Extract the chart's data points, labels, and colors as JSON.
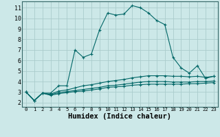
{
  "bg_color": "#cce8e8",
  "grid_color": "#aacccc",
  "line_color": "#006666",
  "marker_style": "+",
  "xlabel": "Humidex (Indice chaleur)",
  "xlabel_fontsize": 7.5,
  "ytick_fontsize": 6.0,
  "xtick_fontsize": 5.2,
  "yticks": [
    2,
    3,
    4,
    5,
    6,
    7,
    8,
    9,
    10,
    11
  ],
  "xticks": [
    0,
    1,
    2,
    3,
    4,
    5,
    6,
    7,
    8,
    9,
    10,
    11,
    12,
    13,
    14,
    15,
    16,
    17,
    18,
    19,
    20,
    21,
    22,
    23
  ],
  "xlim": [
    -0.5,
    23.5
  ],
  "ylim": [
    1.6,
    11.6
  ],
  "lines": [
    {
      "x": [
        0,
        1,
        2,
        3,
        4,
        5,
        6,
        7,
        8,
        9,
        10,
        11,
        12,
        13,
        14,
        15,
        16,
        17,
        18,
        19,
        20,
        21,
        22,
        23
      ],
      "y": [
        3.0,
        2.2,
        2.9,
        2.9,
        3.6,
        3.6,
        7.0,
        6.3,
        6.6,
        8.9,
        10.5,
        10.3,
        10.4,
        11.2,
        11.0,
        10.5,
        9.8,
        9.4,
        6.3,
        5.3,
        4.8,
        5.5,
        4.3,
        4.5
      ]
    },
    {
      "x": [
        0,
        1,
        2,
        3,
        4,
        5,
        6,
        7,
        8,
        9,
        10,
        11,
        12,
        13,
        14,
        15,
        16,
        17,
        18,
        19,
        20,
        21,
        22,
        23
      ],
      "y": [
        3.0,
        2.2,
        2.9,
        2.8,
        3.1,
        3.2,
        3.4,
        3.6,
        3.7,
        3.85,
        4.0,
        4.1,
        4.2,
        4.35,
        4.45,
        4.55,
        4.55,
        4.55,
        4.5,
        4.5,
        4.45,
        4.5,
        4.4,
        4.5
      ]
    },
    {
      "x": [
        0,
        1,
        2,
        3,
        4,
        5,
        6,
        7,
        8,
        9,
        10,
        11,
        12,
        13,
        14,
        15,
        16,
        17,
        18,
        19,
        20,
        21,
        22,
        23
      ],
      "y": [
        3.0,
        2.2,
        2.9,
        2.75,
        2.95,
        3.05,
        3.15,
        3.25,
        3.35,
        3.45,
        3.6,
        3.65,
        3.75,
        3.85,
        3.95,
        4.0,
        4.0,
        4.0,
        3.95,
        3.95,
        3.95,
        4.0,
        4.0,
        4.05
      ]
    },
    {
      "x": [
        0,
        1,
        2,
        3,
        4,
        5,
        6,
        7,
        8,
        9,
        10,
        11,
        12,
        13,
        14,
        15,
        16,
        17,
        18,
        19,
        20,
        21,
        22,
        23
      ],
      "y": [
        3.0,
        2.2,
        2.9,
        2.7,
        2.85,
        2.95,
        3.05,
        3.1,
        3.2,
        3.3,
        3.45,
        3.5,
        3.55,
        3.65,
        3.7,
        3.75,
        3.75,
        3.75,
        3.75,
        3.75,
        3.8,
        3.8,
        3.85,
        3.9
      ]
    }
  ]
}
